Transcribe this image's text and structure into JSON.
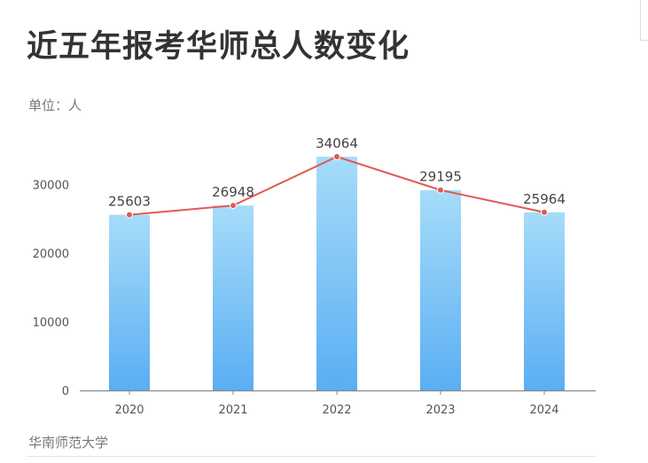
{
  "header": {
    "title": "近五年报考华师总人数变化",
    "unit": "单位：人"
  },
  "footer": {
    "source": "华南师范大学"
  },
  "colors": {
    "bar_top": "#a6dcf9",
    "bar_bottom": "#5aaef3",
    "line": "#e05a52",
    "axis": "#888888"
  },
  "chart_data": {
    "type": "bar",
    "title": "近五年报考华师总人数变化",
    "ylabel": "单位：人",
    "xlabel": "",
    "categories": [
      "2020",
      "2021",
      "2022",
      "2023",
      "2024"
    ],
    "values": [
      25603,
      26948,
      34064,
      29195,
      25964
    ],
    "data_labels": [
      "25603",
      "26948",
      "34064",
      "29195",
      "25964"
    ],
    "overlay": {
      "type": "line",
      "values": [
        25603,
        26948,
        34064,
        29195,
        25964
      ]
    },
    "y_ticks": [
      0,
      10000,
      20000,
      30000
    ],
    "y_tick_labels": [
      "0",
      "10000",
      "20000",
      "30000"
    ],
    "ylim": [
      0,
      34064
    ],
    "grid": false,
    "legend": "none"
  }
}
